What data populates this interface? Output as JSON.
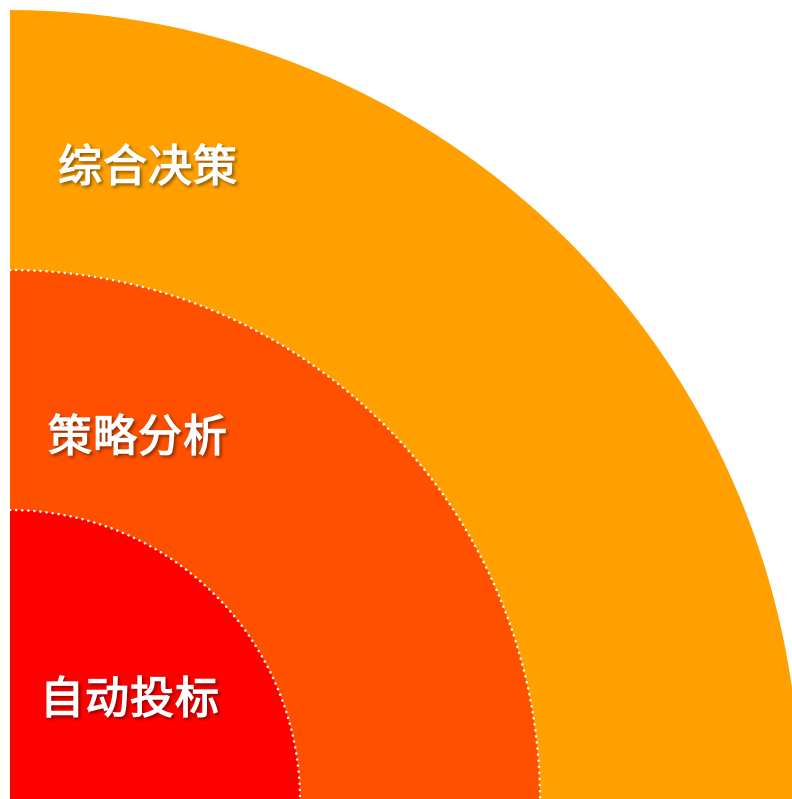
{
  "layers": [
    {
      "label": "综合决策",
      "color": "#FFA000"
    },
    {
      "label": "策略分析",
      "color": "#FF5000"
    },
    {
      "label": "自动投标",
      "color": "#FF0000"
    }
  ],
  "separator_color": "#FFFFFF"
}
